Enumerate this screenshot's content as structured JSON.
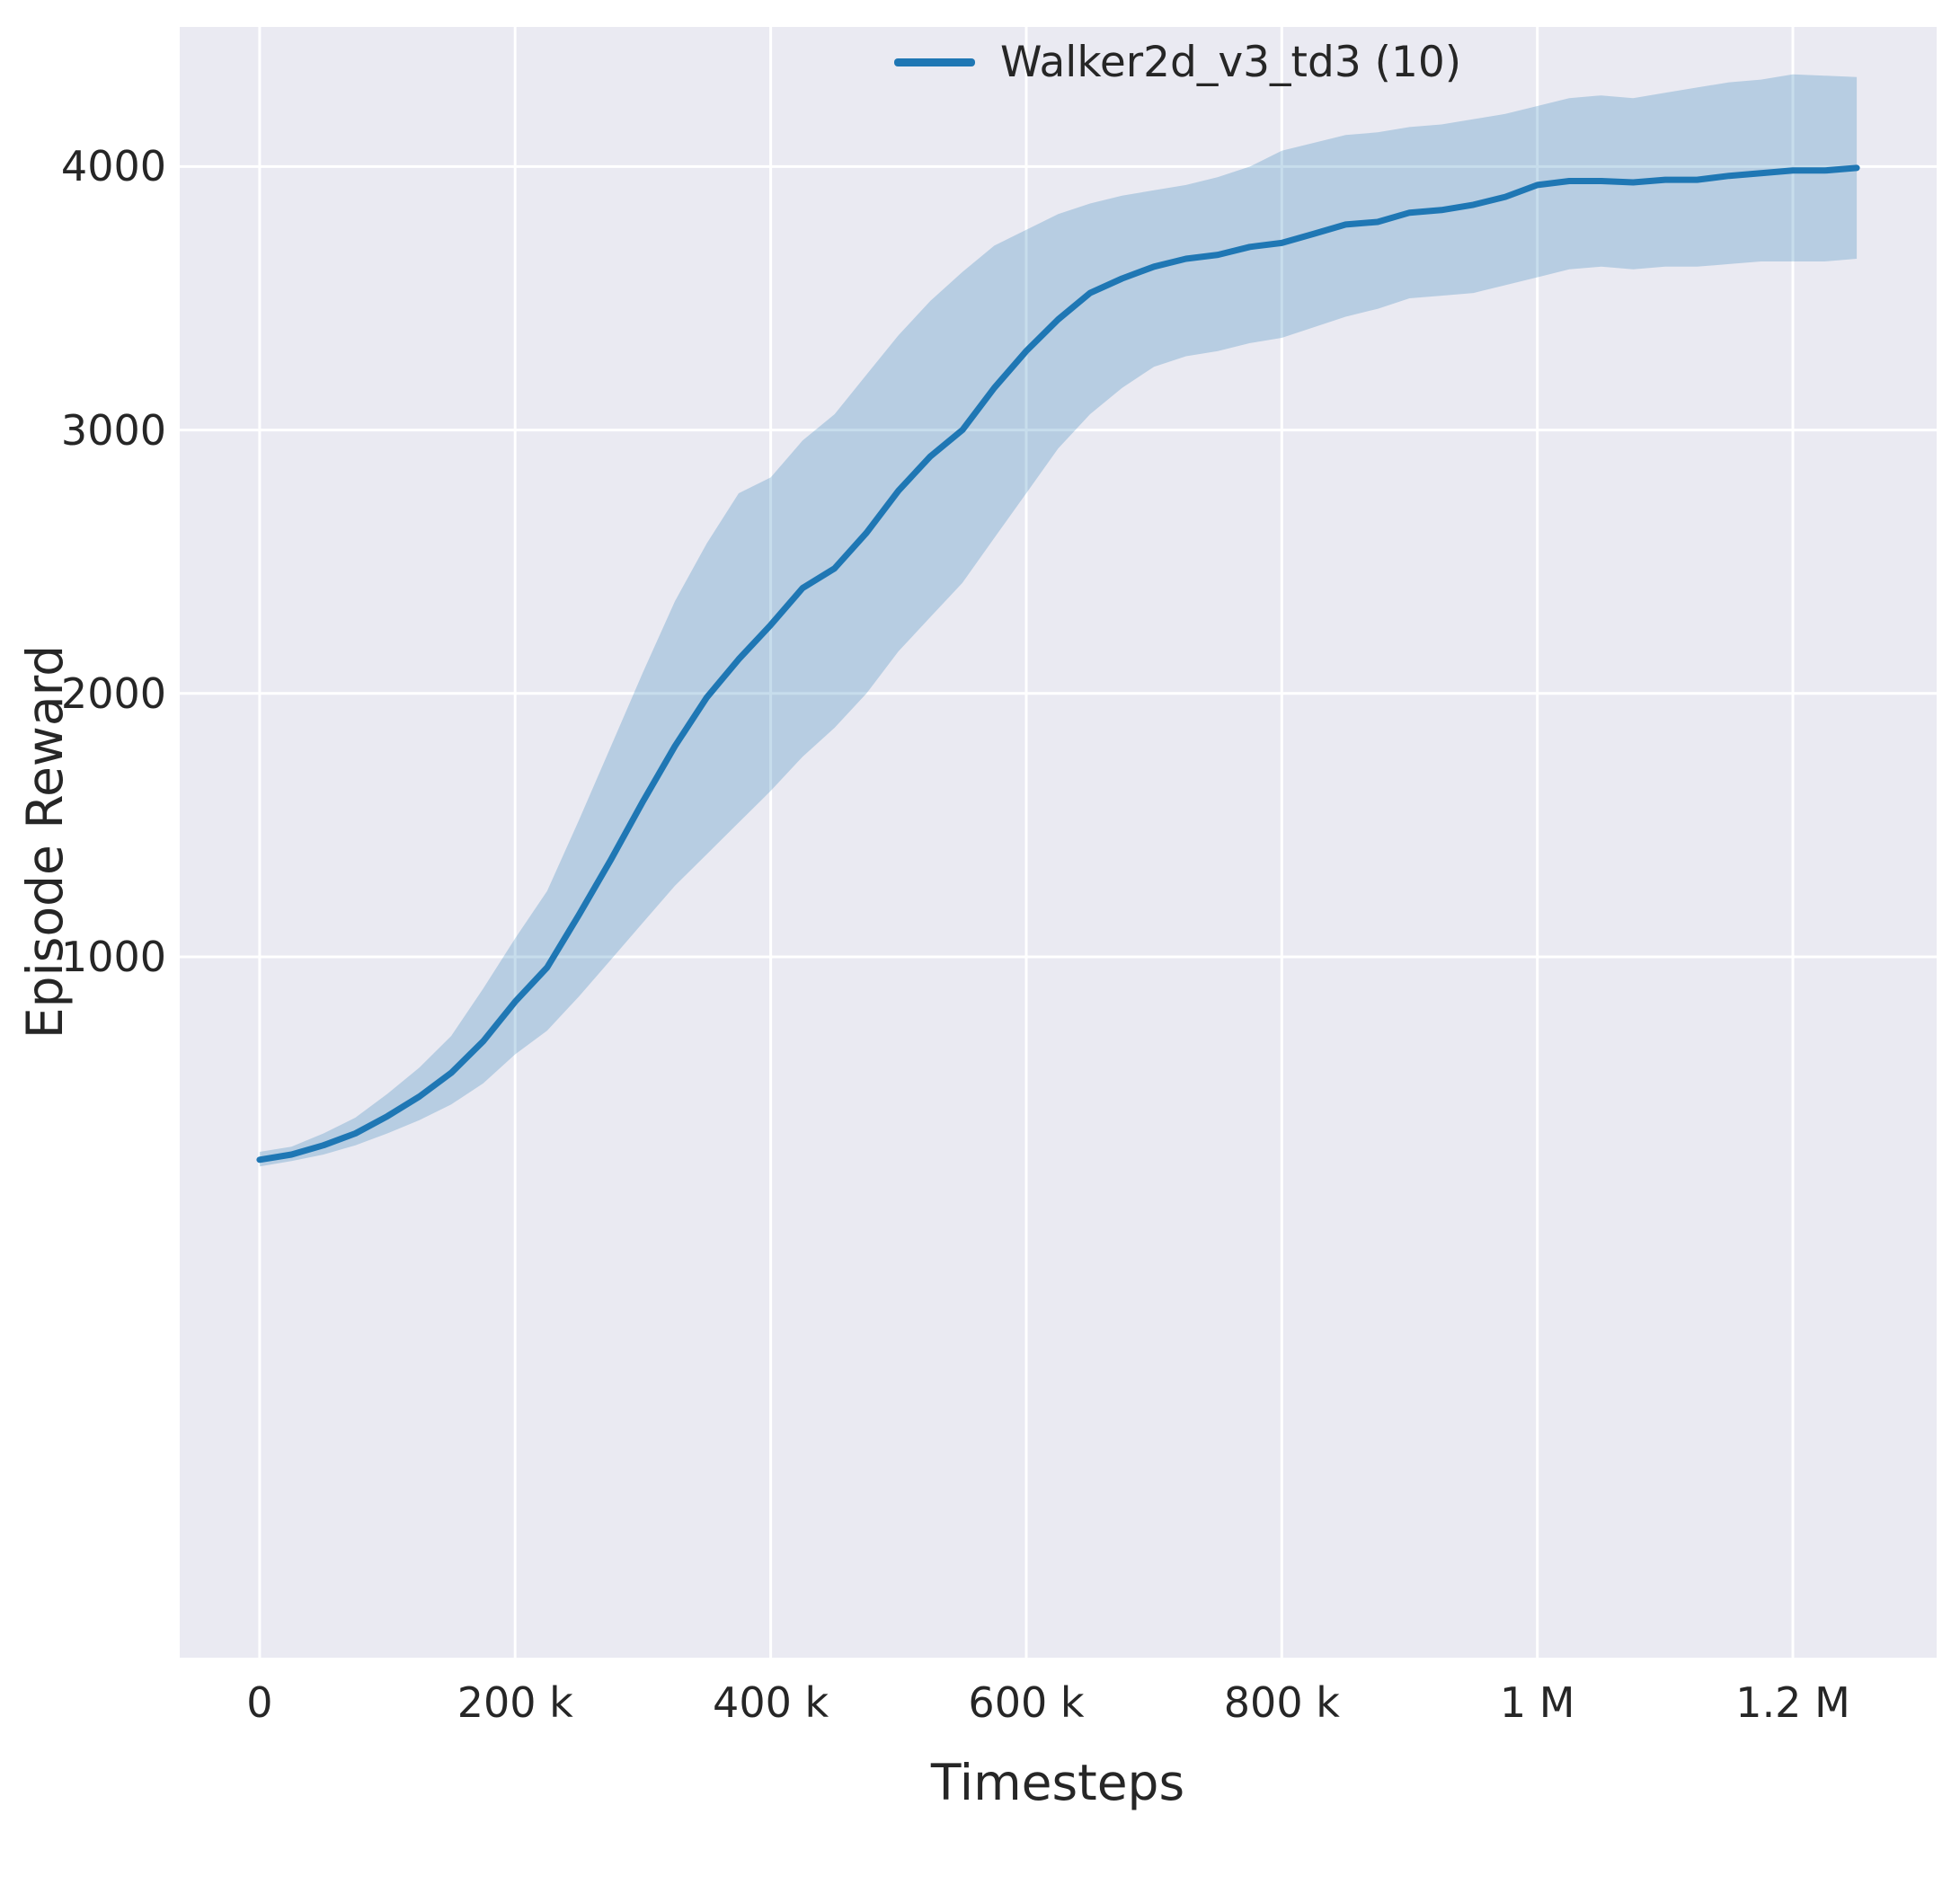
{
  "figure": {
    "background": "#ffffff",
    "axes_background": "#eaeaf2",
    "grid_color": "#ffffff",
    "text_color": "#262626"
  },
  "chart_data": {
    "type": "line",
    "title": "",
    "xlabel": "Timesteps",
    "ylabel": "Episode Reward",
    "grid": true,
    "legend_position": "upper right inset",
    "xlim": [
      -62500,
      1312500
    ],
    "ylim": [
      -1660,
      4530
    ],
    "xticks": {
      "values": [
        0,
        200000,
        400000,
        600000,
        800000,
        1000000,
        1200000
      ],
      "labels": [
        "0",
        "200 k",
        "400 k",
        "600 k",
        "800 k",
        "1 M",
        "1.2 M"
      ]
    },
    "yticks": {
      "values": [
        1000,
        2000,
        3000,
        4000
      ],
      "labels": [
        "1000",
        "2000",
        "3000",
        "4000"
      ]
    },
    "series": [
      {
        "name": "Walker2d_v3_td3 (10)",
        "color": "#1f77b4",
        "band_alpha": 0.25,
        "line_width": 7,
        "x": [
          0,
          25000,
          50000,
          75000,
          100000,
          125000,
          150000,
          175000,
          200000,
          225000,
          250000,
          275000,
          300000,
          325000,
          350000,
          375000,
          400000,
          425000,
          450000,
          475000,
          500000,
          525000,
          550000,
          575000,
          600000,
          625000,
          650000,
          675000,
          700000,
          725000,
          750000,
          775000,
          800000,
          825000,
          850000,
          875000,
          900000,
          925000,
          950000,
          975000,
          1000000,
          1025000,
          1050000,
          1075000,
          1100000,
          1125000,
          1150000,
          1175000,
          1200000,
          1225000,
          1250000
        ],
        "mean": [
          230,
          250,
          285,
          330,
          395,
          470,
          560,
          680,
          830,
          960,
          1160,
          1370,
          1590,
          1800,
          1985,
          2130,
          2260,
          2400,
          2475,
          2610,
          2770,
          2900,
          3000,
          3160,
          3300,
          3420,
          3520,
          3575,
          3620,
          3650,
          3665,
          3695,
          3710,
          3745,
          3780,
          3790,
          3825,
          3835,
          3855,
          3885,
          3930,
          3945,
          3945,
          3940,
          3950,
          3950,
          3965,
          3975,
          3985,
          3985,
          3995
        ],
        "lower": [
          205,
          225,
          250,
          285,
          330,
          380,
          440,
          520,
          630,
          720,
          850,
          990,
          1130,
          1270,
          1390,
          1510,
          1630,
          1760,
          1870,
          2000,
          2160,
          2290,
          2420,
          2590,
          2760,
          2930,
          3060,
          3160,
          3240,
          3280,
          3300,
          3330,
          3350,
          3390,
          3430,
          3460,
          3500,
          3510,
          3520,
          3550,
          3580,
          3610,
          3620,
          3610,
          3620,
          3620,
          3630,
          3640,
          3640,
          3640,
          3650
        ],
        "upper": [
          260,
          280,
          330,
          390,
          480,
          580,
          700,
          880,
          1070,
          1250,
          1520,
          1800,
          2080,
          2350,
          2570,
          2760,
          2820,
          2960,
          3060,
          3210,
          3360,
          3490,
          3600,
          3700,
          3760,
          3820,
          3860,
          3890,
          3910,
          3930,
          3960,
          4000,
          4060,
          4090,
          4120,
          4130,
          4150,
          4160,
          4180,
          4200,
          4230,
          4260,
          4270,
          4260,
          4280,
          4300,
          4320,
          4330,
          4350,
          4345,
          4340
        ]
      }
    ]
  }
}
